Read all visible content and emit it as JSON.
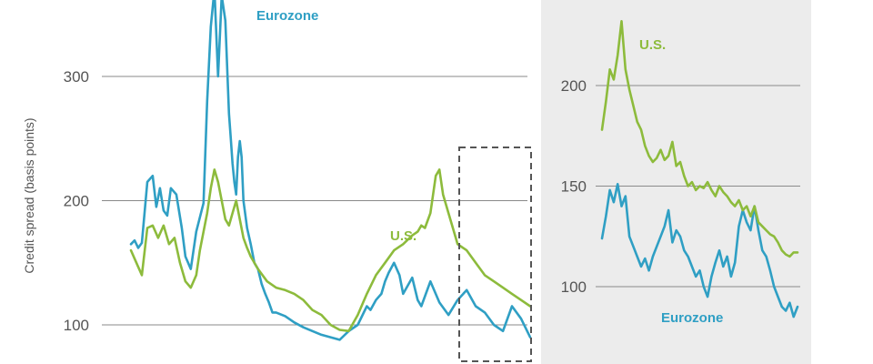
{
  "colors": {
    "eurozone": "#2f9fc4",
    "us": "#8dbb3c",
    "gridline": "#8a8a8a",
    "tick_text": "#555555",
    "inset_background": "#ececec",
    "highlight_box": "#555555"
  },
  "chart_data": [
    {
      "type": "line",
      "panel": "main",
      "title": "",
      "ylabel": "Credit spread (basis points)",
      "xlabel": "",
      "ylim": [
        85,
        370
      ],
      "yticks": [
        100,
        200,
        300
      ],
      "grid": true,
      "series_labels": {
        "eurozone": "Eurozone",
        "us": "U.S."
      },
      "note": "x = observation index (no x-axis labels shown)",
      "series": [
        {
          "name": "Eurozone",
          "key": "eurozone",
          "x": [
            0,
            2,
            4,
            6,
            9,
            12,
            14,
            16,
            18,
            20,
            22,
            25,
            28,
            30,
            33,
            36,
            40,
            42,
            44,
            46,
            48,
            50,
            52,
            54,
            55,
            56,
            57,
            58,
            59,
            60,
            61,
            62,
            64,
            66,
            68,
            70,
            72,
            74,
            76,
            78,
            80,
            85,
            90,
            95,
            100,
            105,
            110,
            115,
            120,
            125,
            130,
            132,
            135,
            138,
            140,
            142,
            145,
            148,
            150,
            155,
            158,
            160,
            165,
            170,
            175,
            180,
            185,
            190,
            195,
            200,
            205,
            210,
            215,
            220
          ],
          "values": [
            165,
            168,
            162,
            166,
            215,
            220,
            195,
            210,
            192,
            188,
            210,
            205,
            178,
            155,
            145,
            175,
            198,
            280,
            340,
            370,
            300,
            365,
            345,
            270,
            250,
            230,
            215,
            205,
            235,
            248,
            235,
            200,
            178,
            165,
            150,
            145,
            133,
            125,
            118,
            110,
            110,
            107,
            102,
            98,
            95,
            92,
            90,
            88,
            95,
            100,
            115,
            112,
            120,
            125,
            135,
            142,
            150,
            140,
            125,
            138,
            120,
            115,
            135,
            118,
            108,
            120,
            128,
            115,
            110,
            100,
            95,
            115,
            105,
            90
          ]
        },
        {
          "name": "U.S.",
          "key": "us",
          "x": [
            0,
            3,
            6,
            9,
            12,
            15,
            18,
            21,
            24,
            27,
            30,
            33,
            36,
            38,
            40,
            42,
            44,
            46,
            48,
            50,
            52,
            54,
            56,
            58,
            60,
            62,
            64,
            66,
            70,
            75,
            80,
            85,
            90,
            95,
            100,
            105,
            110,
            115,
            120,
            125,
            130,
            135,
            140,
            145,
            150,
            155,
            158,
            160,
            162,
            165,
            168,
            170,
            172,
            175,
            178,
            180,
            185,
            190,
            195,
            200,
            205,
            210,
            215,
            220
          ],
          "values": [
            160,
            150,
            140,
            178,
            180,
            170,
            180,
            165,
            170,
            150,
            135,
            130,
            140,
            160,
            175,
            190,
            210,
            225,
            215,
            200,
            185,
            180,
            190,
            200,
            185,
            170,
            162,
            155,
            145,
            135,
            130,
            128,
            125,
            120,
            112,
            108,
            100,
            96,
            95,
            108,
            125,
            140,
            150,
            160,
            165,
            172,
            175,
            180,
            178,
            190,
            220,
            225,
            205,
            190,
            175,
            165,
            160,
            150,
            140,
            135,
            130,
            125,
            120,
            115
          ]
        }
      ]
    },
    {
      "type": "line",
      "panel": "inset",
      "title": "",
      "ylim": [
        80,
        235
      ],
      "yticks": [
        100,
        150,
        200
      ],
      "grid": true,
      "series_labels": {
        "eurozone": "Eurozone",
        "us": "U.S."
      },
      "series": [
        {
          "name": "Eurozone",
          "key": "eurozone",
          "x": [
            0,
            2,
            4,
            6,
            8,
            10,
            12,
            14,
            16,
            18,
            20,
            22,
            24,
            26,
            28,
            30,
            32,
            34,
            36,
            38,
            40,
            42,
            44,
            46,
            48,
            50,
            52,
            54,
            56,
            58,
            60,
            62,
            64,
            66,
            68,
            70,
            72,
            74,
            76,
            78,
            80,
            82,
            84,
            86,
            88,
            90,
            92,
            94,
            96,
            98,
            100
          ],
          "values": [
            124,
            135,
            148,
            142,
            151,
            140,
            145,
            125,
            120,
            115,
            110,
            114,
            108,
            115,
            120,
            125,
            130,
            138,
            122,
            128,
            125,
            118,
            115,
            110,
            105,
            108,
            100,
            95,
            105,
            112,
            118,
            110,
            115,
            105,
            112,
            130,
            138,
            132,
            128,
            140,
            128,
            118,
            115,
            108,
            100,
            95,
            90,
            88,
            92,
            85,
            90
          ]
        },
        {
          "name": "U.S.",
          "key": "us",
          "x": [
            0,
            2,
            4,
            6,
            8,
            10,
            12,
            14,
            16,
            18,
            20,
            22,
            24,
            26,
            28,
            30,
            32,
            34,
            36,
            38,
            40,
            42,
            44,
            46,
            48,
            50,
            52,
            54,
            56,
            58,
            60,
            62,
            64,
            66,
            68,
            70,
            72,
            74,
            76,
            78,
            80,
            82,
            84,
            86,
            88,
            90,
            92,
            94,
            96,
            98,
            100
          ],
          "values": [
            178,
            192,
            208,
            203,
            215,
            232,
            208,
            198,
            190,
            182,
            178,
            170,
            165,
            162,
            164,
            168,
            163,
            165,
            172,
            160,
            162,
            155,
            150,
            152,
            148,
            150,
            149,
            152,
            148,
            145,
            150,
            147,
            145,
            142,
            140,
            143,
            138,
            140,
            135,
            140,
            132,
            130,
            128,
            126,
            125,
            122,
            118,
            116,
            115,
            117,
            117
          ]
        }
      ]
    }
  ]
}
